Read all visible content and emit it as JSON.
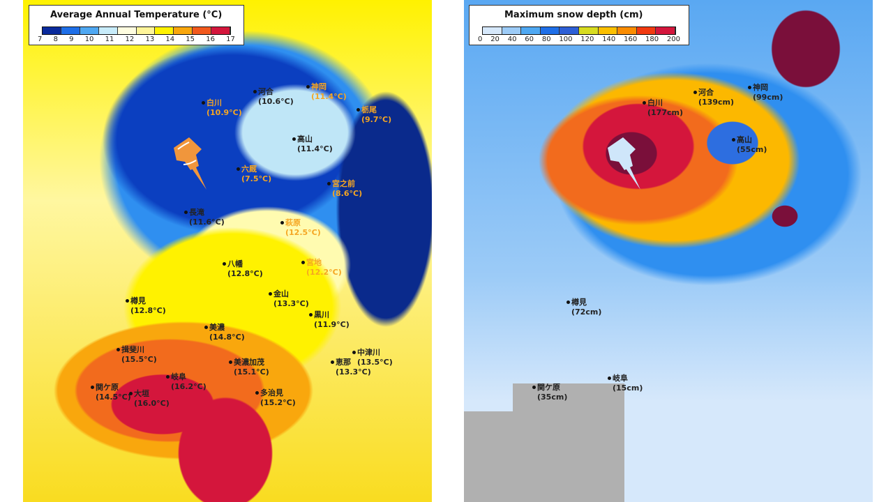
{
  "temperature_map": {
    "legend": {
      "title": "Average Annual Temperature (°C)",
      "ticks": [
        "7",
        "8",
        "9",
        "10",
        "11",
        "12",
        "13",
        "14",
        "15",
        "16",
        "17"
      ],
      "colors": [
        "#0a2a9c",
        "#1f6fe8",
        "#4fa8f2",
        "#c8ecfa",
        "#fffde0",
        "#fff59a",
        "#fff200",
        "#f9a70d",
        "#f2591d",
        "#d4163c"
      ]
    },
    "stations": [
      {
        "name": "白川",
        "value": "(10.9°C)"
      },
      {
        "name": "河合",
        "value": "(10.6°C)"
      },
      {
        "name": "神岡",
        "value": "(11.4°C)"
      },
      {
        "name": "栃尾",
        "value": "(9.7°C)"
      },
      {
        "name": "高山",
        "value": "(11.4°C)"
      },
      {
        "name": "六厩",
        "value": "(7.5°C)"
      },
      {
        "name": "宮之前",
        "value": "(8.6°C)"
      },
      {
        "name": "長滝",
        "value": "(11.6°C)"
      },
      {
        "name": "萩原",
        "value": "(12.5°C)"
      },
      {
        "name": "宮地",
        "value": "(12.2°C)"
      },
      {
        "name": "八幡",
        "value": "(12.8°C)"
      },
      {
        "name": "金山",
        "value": "(13.3°C)"
      },
      {
        "name": "樽見",
        "value": "(12.8°C)"
      },
      {
        "name": "黒川",
        "value": "(11.9°C)"
      },
      {
        "name": "美濃",
        "value": "(14.8°C)"
      },
      {
        "name": "揖斐川",
        "value": "(15.5°C)"
      },
      {
        "name": "中津川",
        "value": "(13.5°C)"
      },
      {
        "name": "美濃加茂",
        "value": "(15.1°C)"
      },
      {
        "name": "恵那",
        "value": "(13.3°C)"
      },
      {
        "name": "岐阜",
        "value": "(16.2°C)"
      },
      {
        "name": "関ケ原",
        "value": "(14.5°C)"
      },
      {
        "name": "大垣",
        "value": "(16.0°C)"
      },
      {
        "name": "多治見",
        "value": "(15.2°C)"
      }
    ],
    "pin_color": "#f0963c"
  },
  "snow_map": {
    "legend": {
      "title": "Maximum snow depth (cm)",
      "ticks": [
        "0",
        "20",
        "40",
        "60",
        "80",
        "100",
        "120",
        "140",
        "160",
        "180",
        "200"
      ],
      "colors": [
        "#d6e8fb",
        "#9ccbf7",
        "#4fa8f2",
        "#1f6fe8",
        "#2d5fd6",
        "#d8dc20",
        "#fcc000",
        "#fb8c00",
        "#f23a10",
        "#d4163c"
      ]
    },
    "stations": [
      {
        "name": "白川",
        "value": "(177cm)"
      },
      {
        "name": "河合",
        "value": "(139cm)"
      },
      {
        "name": "神岡",
        "value": "(99cm)"
      },
      {
        "name": "高山",
        "value": "(55cm)"
      },
      {
        "name": "樽見",
        "value": "(72cm)"
      },
      {
        "name": "関ケ原",
        "value": "(35cm)"
      },
      {
        "name": "岐阜",
        "value": "(15cm)"
      }
    ],
    "pin_color": "#cfe6fa"
  }
}
